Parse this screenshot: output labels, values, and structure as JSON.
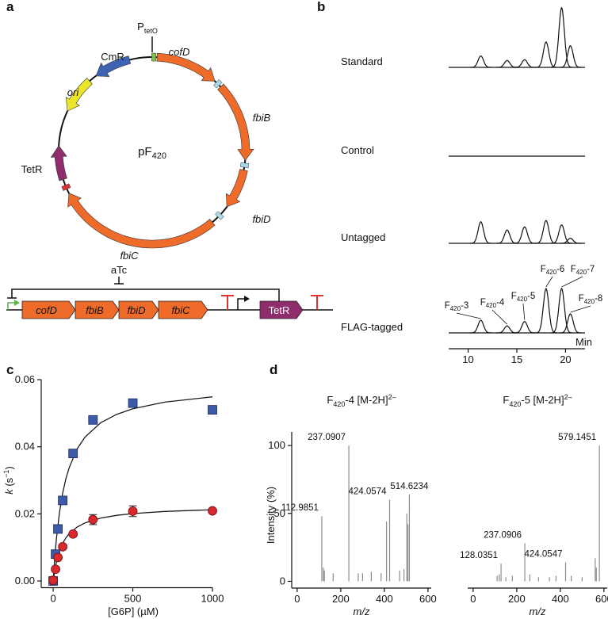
{
  "panels": [
    "a",
    "b",
    "c",
    "d"
  ],
  "plasmid": {
    "name": {
      "main": "pF",
      "sub": "420"
    },
    "promoter": {
      "main": "P",
      "sub": "tetO"
    },
    "genes": [
      {
        "label": "CmR",
        "italic": false,
        "color": "#3f63b3"
      },
      {
        "label": "ori",
        "italic": true,
        "color": "#ebe52c"
      },
      {
        "label": "cofD",
        "italic": true,
        "color": "#ef6b2a"
      },
      {
        "label": "fbiB",
        "italic": true,
        "color": "#ef6b2a"
      },
      {
        "label": "fbiD",
        "italic": true,
        "color": "#ef6b2a"
      },
      {
        "label": "fbiC",
        "italic": true,
        "color": "#ef6b2a"
      },
      {
        "label": "TetR",
        "italic": false,
        "color": "#8f2d6c"
      }
    ]
  },
  "operon": {
    "inducer": "aTc",
    "genes": [
      {
        "label": "cofD",
        "italic": true,
        "color": "#ef6b2a"
      },
      {
        "label": "fbiB",
        "italic": true,
        "color": "#ef6b2a"
      },
      {
        "label": "fbiD",
        "italic": true,
        "color": "#ef6b2a"
      },
      {
        "label": "fbiC",
        "italic": true,
        "color": "#ef6b2a"
      },
      {
        "label": "TetR",
        "italic": false,
        "color": "#8f2d6c"
      }
    ]
  },
  "chart_data": [
    {
      "type": "chromatogram",
      "xlabel": "Min",
      "xlim": [
        8,
        22
      ],
      "xticks": [
        10,
        15,
        20
      ],
      "ylim": [
        0,
        100
      ],
      "series": [
        {
          "name": "Standard",
          "color": "#111111",
          "x": [
            11.3,
            14,
            15.8,
            18,
            19.6,
            20.5
          ],
          "values": [
            18,
            11,
            12,
            40,
            94,
            34
          ]
        },
        {
          "name": "Control",
          "color": "#111111",
          "x": [],
          "values": []
        },
        {
          "name": "Untagged",
          "color": "#111111",
          "x": [
            11.3,
            14,
            15.8,
            18,
            19.6,
            20.5
          ],
          "values": [
            34,
            21,
            26,
            36,
            29,
            8
          ]
        },
        {
          "name": "FLAG-tagged",
          "color": "#111111",
          "x": [
            11.3,
            14,
            15.8,
            18,
            19.6,
            20.5
          ],
          "values": [
            20,
            11,
            18,
            70,
            70,
            30
          ],
          "peak_labels": [
            {
              "main": "F",
              "sub": "420",
              "suffix": "-3"
            },
            {
              "main": "F",
              "sub": "420",
              "suffix": "-4"
            },
            {
              "main": "F",
              "sub": "420",
              "suffix": "-5"
            },
            {
              "main": "F",
              "sub": "420",
              "suffix": "-6"
            },
            {
              "main": "F",
              "sub": "420",
              "suffix": "-7"
            },
            {
              "main": "F",
              "sub": "420",
              "suffix": "-8"
            }
          ]
        }
      ]
    },
    {
      "type": "scatter",
      "xlabel": "[G6P] (µM)",
      "ylabel": {
        "var": "k",
        "open": " (s",
        "exp": "−1",
        "close": ")"
      },
      "xlim": [
        -75,
        1000
      ],
      "ylim": [
        -0.002,
        0.06
      ],
      "xticks": [
        0,
        500,
        1000
      ],
      "yticks": [
        {
          "value": 0,
          "label": "0.00"
        },
        {
          "value": 0.02,
          "label": "0.02"
        },
        {
          "value": 0.04,
          "label": "0.04"
        },
        {
          "value": 0.06,
          "label": "0.06"
        }
      ],
      "series": [
        {
          "color": "#3d5aa8",
          "marker": "square",
          "x": [
            0,
            15,
            30,
            60,
            125,
            250,
            500,
            1000
          ],
          "values": [
            0,
            0.008,
            0.0155,
            0.024,
            0.038,
            0.048,
            0.053,
            0.051
          ]
        },
        {
          "color": "#d8282b",
          "marker": "circle",
          "x": [
            0,
            15,
            30,
            60,
            125,
            250,
            500,
            1000
          ],
          "values": [
            0.0002,
            0.0035,
            0.007,
            0.0102,
            0.014,
            0.0183,
            0.0208,
            0.0209
          ],
          "errors": [
            null,
            null,
            null,
            null,
            null,
            0.0015,
            0.0016,
            null
          ]
        }
      ],
      "fits": [
        {
          "color": "#1a1a1a",
          "x": [
            0,
            10,
            20,
            40,
            60,
            80,
            100,
            150,
            200,
            300,
            400,
            500,
            700,
            1000
          ],
          "values": [
            0,
            0.00694,
            0.01242,
            0.02052,
            0.02622,
            0.03045,
            0.03371,
            0.03933,
            0.04291,
            0.0472,
            0.04968,
            0.0513,
            0.05329,
            0.05488
          ]
        },
        {
          "color": "#1a1a1a",
          "x": [
            0,
            10,
            20,
            40,
            60,
            80,
            100,
            150,
            200,
            300,
            400,
            500,
            700,
            1000
          ],
          "values": [
            0,
            0.00321,
            0.00563,
            0.009,
            0.01125,
            0.01286,
            0.01406,
            0.01607,
            0.01731,
            0.01875,
            0.01957,
            0.02009,
            0.02072,
            0.02123
          ]
        }
      ]
    },
    {
      "type": "stem",
      "title": {
        "main": "F",
        "sub": "420",
        "rest": "-4 [M-2H]",
        "sup": "2–"
      },
      "xlabel": "m/z",
      "ylabel": "Intensity (%)",
      "xlim": [
        -25,
        615
      ],
      "ylim": [
        -5,
        110
      ],
      "xticks": [
        0,
        200,
        400,
        600
      ],
      "yticks": [
        0,
        50,
        100
      ],
      "color": "#8c8c8c",
      "series": [
        {
          "show_labels": true,
          "x": [
            112.9851,
            237.0907,
            424.0574,
            514.6234
          ],
          "values": [
            48,
            100,
            60,
            64
          ]
        },
        {
          "show_labels": false,
          "x": [
            120,
            125,
            165,
            280,
            300,
            340,
            385,
            410,
            470,
            490,
            503,
            508
          ],
          "values": [
            10,
            8,
            6,
            6,
            6,
            7,
            6,
            44,
            8,
            9,
            50,
            42
          ]
        }
      ]
    },
    {
      "type": "stem",
      "title": {
        "main": "F",
        "sub": "420",
        "rest": "-5 [M-2H]",
        "sup": "2–"
      },
      "xlabel": "m/z",
      "xlim": [
        -25,
        615
      ],
      "ylim": [
        -5,
        110
      ],
      "xticks": [
        0,
        200,
        400,
        600
      ],
      "color": "#8c8c8c",
      "series": [
        {
          "show_labels": true,
          "x": [
            128.0351,
            237.0906,
            424.0547,
            579.1451
          ],
          "values": [
            13,
            28,
            14,
            100
          ]
        },
        {
          "show_labels": false,
          "x": [
            110,
            120,
            150,
            180,
            260,
            300,
            350,
            380,
            450,
            500,
            560,
            565
          ],
          "values": [
            4,
            5,
            3,
            4,
            5,
            3,
            3,
            4,
            4,
            3,
            17,
            10
          ]
        }
      ]
    }
  ]
}
